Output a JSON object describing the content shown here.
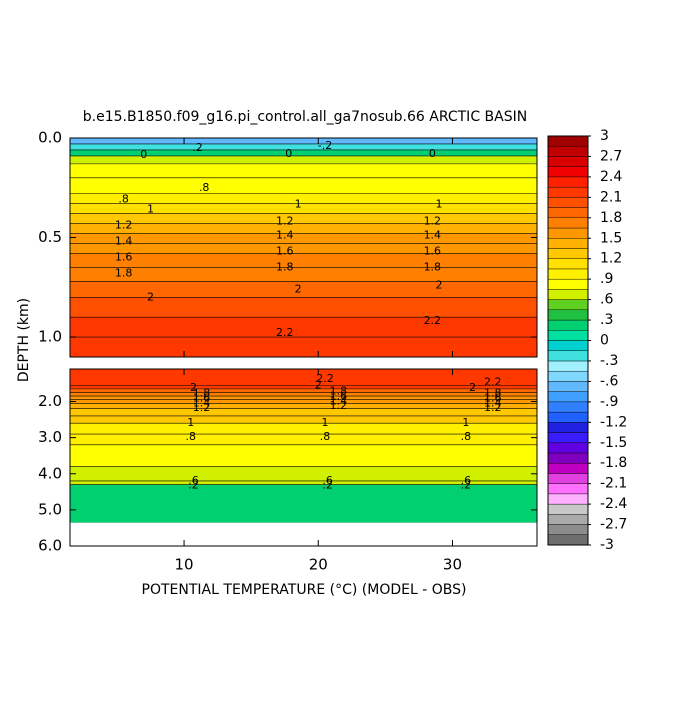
{
  "chart_data": {
    "type": "contour",
    "title": "b.e15.B1850.f09_g16.pi_control.all_ga7nosub.66 ARCTIC BASIN",
    "y_label": "DEPTH (km)",
    "x_label": "POTENTIAL TEMPERATURE (°C) (MODEL - OBS)",
    "xlim": [
      1.5,
      36.3
    ],
    "xticks": [
      10,
      20,
      30
    ],
    "panels": [
      {
        "ylim": [
          0,
          1.1
        ],
        "yticks": [
          {
            "value": 0,
            "label": "0.0"
          },
          {
            "value": 0.5,
            "label": "0.5"
          },
          {
            "value": 1,
            "label": "1.0"
          }
        ],
        "depths": [
          0,
          0.03,
          0.06,
          0.09,
          0.13,
          0.2,
          0.28,
          0.33,
          0.38,
          0.43,
          0.48,
          0.53,
          0.58,
          0.65,
          0.72,
          0.8,
          0.9,
          1.0,
          1.1
        ],
        "values": [
          -0.6,
          -0.3,
          0.2,
          0.6,
          0.8,
          0.8,
          0.9,
          1.1,
          1.3,
          1.4,
          1.5,
          1.6,
          1.7,
          1.8,
          1.9,
          2.0,
          2.1,
          2.2
        ],
        "contour_labels": [
          {
            "x": 11,
            "y": 0.05,
            "value": 0.2,
            "label": ".2"
          },
          {
            "x": 20.5,
            "y": 0.04,
            "value": -0.2,
            "label": "-.2"
          },
          {
            "x": 7,
            "y": 0.085,
            "value": 0
          },
          {
            "x": 17.8,
            "y": 0.08,
            "value": 0
          },
          {
            "x": 28.5,
            "y": 0.08,
            "value": 0
          },
          {
            "x": 5.5,
            "y": 0.31,
            "value": 0.8,
            "label": ".8"
          },
          {
            "x": 11.5,
            "y": 0.25,
            "value": 0.8,
            "label": ".8"
          },
          {
            "x": 7.5,
            "y": 0.36,
            "value": 1
          },
          {
            "x": 18.5,
            "y": 0.335,
            "value": 1
          },
          {
            "x": 29,
            "y": 0.335,
            "value": 1
          },
          {
            "x": 5.5,
            "y": 0.44,
            "value": 1.2
          },
          {
            "x": 17.5,
            "y": 0.42,
            "value": 1.2
          },
          {
            "x": 28.5,
            "y": 0.42,
            "value": 1.2
          },
          {
            "x": 5.5,
            "y": 0.52,
            "value": 1.4
          },
          {
            "x": 17.5,
            "y": 0.49,
            "value": 1.4
          },
          {
            "x": 28.5,
            "y": 0.49,
            "value": 1.4
          },
          {
            "x": 5.5,
            "y": 0.6,
            "value": 1.6
          },
          {
            "x": 17.5,
            "y": 0.57,
            "value": 1.6
          },
          {
            "x": 28.5,
            "y": 0.57,
            "value": 1.6
          },
          {
            "x": 5.5,
            "y": 0.68,
            "value": 1.8
          },
          {
            "x": 17.5,
            "y": 0.65,
            "value": 1.8
          },
          {
            "x": 28.5,
            "y": 0.65,
            "value": 1.8
          },
          {
            "x": 7.5,
            "y": 0.8,
            "value": 2
          },
          {
            "x": 18.5,
            "y": 0.76,
            "value": 2
          },
          {
            "x": 29,
            "y": 0.74,
            "value": 2
          },
          {
            "x": 17.5,
            "y": 0.98,
            "value": 2.2
          },
          {
            "x": 28.5,
            "y": 0.92,
            "value": 2.2
          }
        ]
      },
      {
        "ylim": [
          1.1,
          6.0
        ],
        "yticks": [
          {
            "value": 2,
            "label": "2.0"
          },
          {
            "value": 3,
            "label": "3.0"
          },
          {
            "value": 4,
            "label": "4.0"
          },
          {
            "value": 5,
            "label": "5.0"
          },
          {
            "value": 6,
            "label": "6.0"
          }
        ],
        "depths": [
          1.1,
          1.55,
          1.65,
          1.75,
          1.85,
          1.95,
          2.05,
          2.2,
          2.4,
          2.6,
          2.9,
          3.2,
          3.8,
          4.2,
          4.3,
          5.35
        ],
        "values": [
          2.2,
          2.1,
          1.9,
          1.8,
          1.6,
          1.5,
          1.4,
          1.3,
          1.2,
          1.0,
          0.9,
          0.8,
          0.7,
          0.6,
          0.3
        ],
        "contour_labels": [
          {
            "x": 20.5,
            "y": 1.37,
            "value": 2.2
          },
          {
            "x": 33,
            "y": 1.48,
            "value": 2.2
          },
          {
            "x": 10.7,
            "y": 1.63,
            "value": 2
          },
          {
            "x": 20,
            "y": 1.55,
            "value": 2
          },
          {
            "x": 31.5,
            "y": 1.63,
            "value": 2
          },
          {
            "x": 11.3,
            "y": 1.78,
            "value": 1.8
          },
          {
            "x": 21.5,
            "y": 1.72,
            "value": 1.8
          },
          {
            "x": 33,
            "y": 1.78,
            "value": 1.8
          },
          {
            "x": 11.3,
            "y": 1.92,
            "value": 1.6
          },
          {
            "x": 21.5,
            "y": 1.86,
            "value": 1.6
          },
          {
            "x": 33,
            "y": 1.92,
            "value": 1.6
          },
          {
            "x": 11.3,
            "y": 2.05,
            "value": 1.4
          },
          {
            "x": 21.5,
            "y": 2.0,
            "value": 1.4
          },
          {
            "x": 33,
            "y": 2.05,
            "value": 1.4
          },
          {
            "x": 11.3,
            "y": 2.18,
            "value": 1.2
          },
          {
            "x": 21.5,
            "y": 2.13,
            "value": 1.2
          },
          {
            "x": 33,
            "y": 2.18,
            "value": 1.2
          },
          {
            "x": 10.5,
            "y": 2.6,
            "value": 1
          },
          {
            "x": 20.5,
            "y": 2.6,
            "value": 1
          },
          {
            "x": 31,
            "y": 2.6,
            "value": 1
          },
          {
            "x": 10.5,
            "y": 2.98,
            "value": 0.8,
            "label": ".8"
          },
          {
            "x": 20.5,
            "y": 2.98,
            "value": 0.8,
            "label": ".8"
          },
          {
            "x": 31,
            "y": 2.98,
            "value": 0.8,
            "label": ".8"
          },
          {
            "x": 10.7,
            "y": 4.2,
            "value": 0.6,
            "label": ".6"
          },
          {
            "x": 20.7,
            "y": 4.2,
            "value": 0.6,
            "label": ".6"
          },
          {
            "x": 31,
            "y": 4.2,
            "value": 0.6,
            "label": ".6"
          },
          {
            "x": 10.7,
            "y": 4.33,
            "value": 0.2,
            "label": ".2"
          },
          {
            "x": 20.7,
            "y": 4.33,
            "value": 0.2,
            "label": ".2"
          },
          {
            "x": 31,
            "y": 4.33,
            "value": 0.2,
            "label": ".2"
          }
        ]
      }
    ],
    "colorbar": {
      "lim": [
        -3,
        3
      ],
      "colors": [
        "#6e6e6e",
        "#8c8c8c",
        "#aaaaaa",
        "#c8c8c8",
        "#ffb0ff",
        "#ff70ff",
        "#e040e0",
        "#c000c0",
        "#8000c0",
        "#6000e0",
        "#3a1cff",
        "#2020e0",
        "#2060ff",
        "#3080ff",
        "#40a0ff",
        "#60b8ff",
        "#80d8ff",
        "#a0f0ff",
        "#40e0e0",
        "#00d0d0",
        "#00e0a0",
        "#00d070",
        "#20c040",
        "#60d020",
        "#d0f000",
        "#ffff00",
        "#fff000",
        "#ffe000",
        "#ffc800",
        "#ffb000",
        "#ff9800",
        "#ff8000",
        "#ff6800",
        "#ff5000",
        "#ff3800",
        "#ff2000",
        "#f00000",
        "#d80000",
        "#c00000",
        "#a00000"
      ],
      "ticks": [
        -3,
        -2.7,
        -2.4,
        -2.1,
        -1.8,
        -1.5,
        -1.2,
        {
          "value": -0.9,
          "label": "-.9"
        },
        {
          "value": -0.6,
          "label": "-.6"
        },
        {
          "value": -0.3,
          "label": "-.3"
        },
        0,
        {
          "value": 0.3,
          "label": ".3"
        },
        {
          "value": 0.6,
          "label": ".6"
        },
        {
          "value": 0.9,
          "label": ".9"
        },
        1.2,
        1.5,
        1.8,
        2.1,
        2.4,
        2.7,
        3
      ]
    }
  }
}
